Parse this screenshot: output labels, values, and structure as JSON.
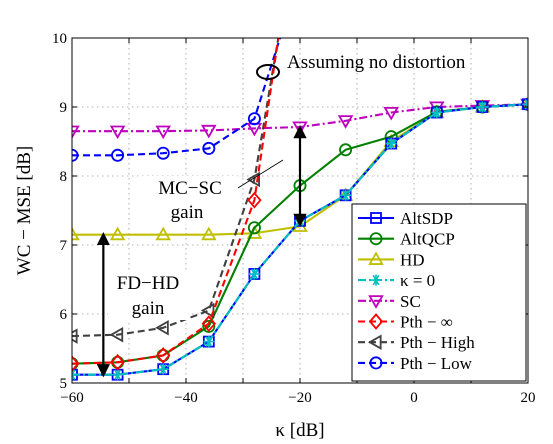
{
  "chart_data": {
    "type": "line",
    "xlabel": "κ [dB]",
    "ylabel": "WC − MSE [dB]",
    "xlim": [
      -60,
      20
    ],
    "ylim": [
      5,
      10
    ],
    "xticks": [
      -60,
      -40,
      -20,
      0,
      20
    ],
    "yticks": [
      5,
      6,
      7,
      8,
      9,
      10
    ],
    "xtick_labels": [
      "−60",
      "−40",
      "−20",
      "0",
      "20"
    ],
    "ytick_labels": [
      "5",
      "6",
      "7",
      "8",
      "9",
      "10"
    ],
    "grid": true,
    "legend_position": "bottom-right",
    "series": [
      {
        "name": "AltSDP",
        "color": "#0000ff",
        "dash": "solid",
        "marker": "square",
        "x": [
          -60,
          -52,
          -44,
          -36,
          -28,
          -20,
          -12,
          -4,
          4,
          12,
          20
        ],
        "y": [
          5.12,
          5.12,
          5.2,
          5.6,
          6.58,
          7.35,
          7.72,
          8.47,
          8.92,
          9.0,
          9.04
        ]
      },
      {
        "name": "AltQCP",
        "color": "#008000",
        "dash": "solid",
        "marker": "circle",
        "x": [
          -60,
          -52,
          -44,
          -36,
          -28,
          -20,
          -12,
          -4,
          4,
          12,
          20
        ],
        "y": [
          5.28,
          5.3,
          5.4,
          5.82,
          7.25,
          7.86,
          8.38,
          8.57,
          8.93,
          9.0,
          9.04
        ]
      },
      {
        "name": "HD",
        "color": "#bfbf00",
        "dash": "solid",
        "marker": "triangle-up",
        "x": [
          -60,
          -52,
          -44,
          -36,
          -28,
          -20,
          -12,
          -4,
          4,
          12,
          20
        ],
        "y": [
          7.15,
          7.15,
          7.15,
          7.15,
          7.17,
          7.27,
          7.72,
          8.5,
          8.92,
          9.0,
          9.04
        ]
      },
      {
        "name": "κ = 0",
        "color": "#00bfbf",
        "dash": "dashdot",
        "marker": "asterisk",
        "x": [
          -60,
          -52,
          -44,
          -36,
          -28,
          -20,
          -12,
          -4,
          4,
          12,
          20
        ],
        "y": [
          5.12,
          5.12,
          5.2,
          5.6,
          6.58,
          7.35,
          7.72,
          8.47,
          8.92,
          9.0,
          9.04
        ]
      },
      {
        "name": "SC",
        "color": "#bf00bf",
        "dash": "dashdot",
        "marker": "triangle-down",
        "x": [
          -60,
          -52,
          -44,
          -36,
          -28,
          -20,
          -12,
          -4,
          4,
          12,
          20
        ],
        "y": [
          8.65,
          8.65,
          8.65,
          8.66,
          8.69,
          8.71,
          8.8,
          8.92,
          9.0,
          9.02,
          9.04
        ]
      },
      {
        "name": "Pth − ∞",
        "color": "#ff0000",
        "dash": "dashed",
        "marker": "diamond",
        "x": [
          -60,
          -52,
          -44,
          -36,
          -28,
          -23.8
        ],
        "y": [
          5.28,
          5.3,
          5.4,
          5.86,
          7.65,
          10
        ]
      },
      {
        "name": "Pth − High",
        "color": "#404040",
        "dash": "dashed",
        "marker": "triangle-left",
        "x": [
          -60,
          -52,
          -44,
          -36,
          -28,
          -23.8
        ],
        "y": [
          5.68,
          5.7,
          5.8,
          6.05,
          7.95,
          10
        ]
      },
      {
        "name": "Pth − Low",
        "color": "#0000ff",
        "dash": "dashed",
        "marker": "circle",
        "x": [
          -60,
          -52,
          -44,
          -36,
          -28,
          -23.5
        ],
        "y": [
          8.3,
          8.3,
          8.33,
          8.4,
          8.83,
          10
        ]
      }
    ],
    "annotations": [
      {
        "text": "Assuming no distortion"
      },
      {
        "text": "MC−SC"
      },
      {
        "text": "gain"
      },
      {
        "text": "FD−HD"
      },
      {
        "text": "gain"
      }
    ]
  }
}
